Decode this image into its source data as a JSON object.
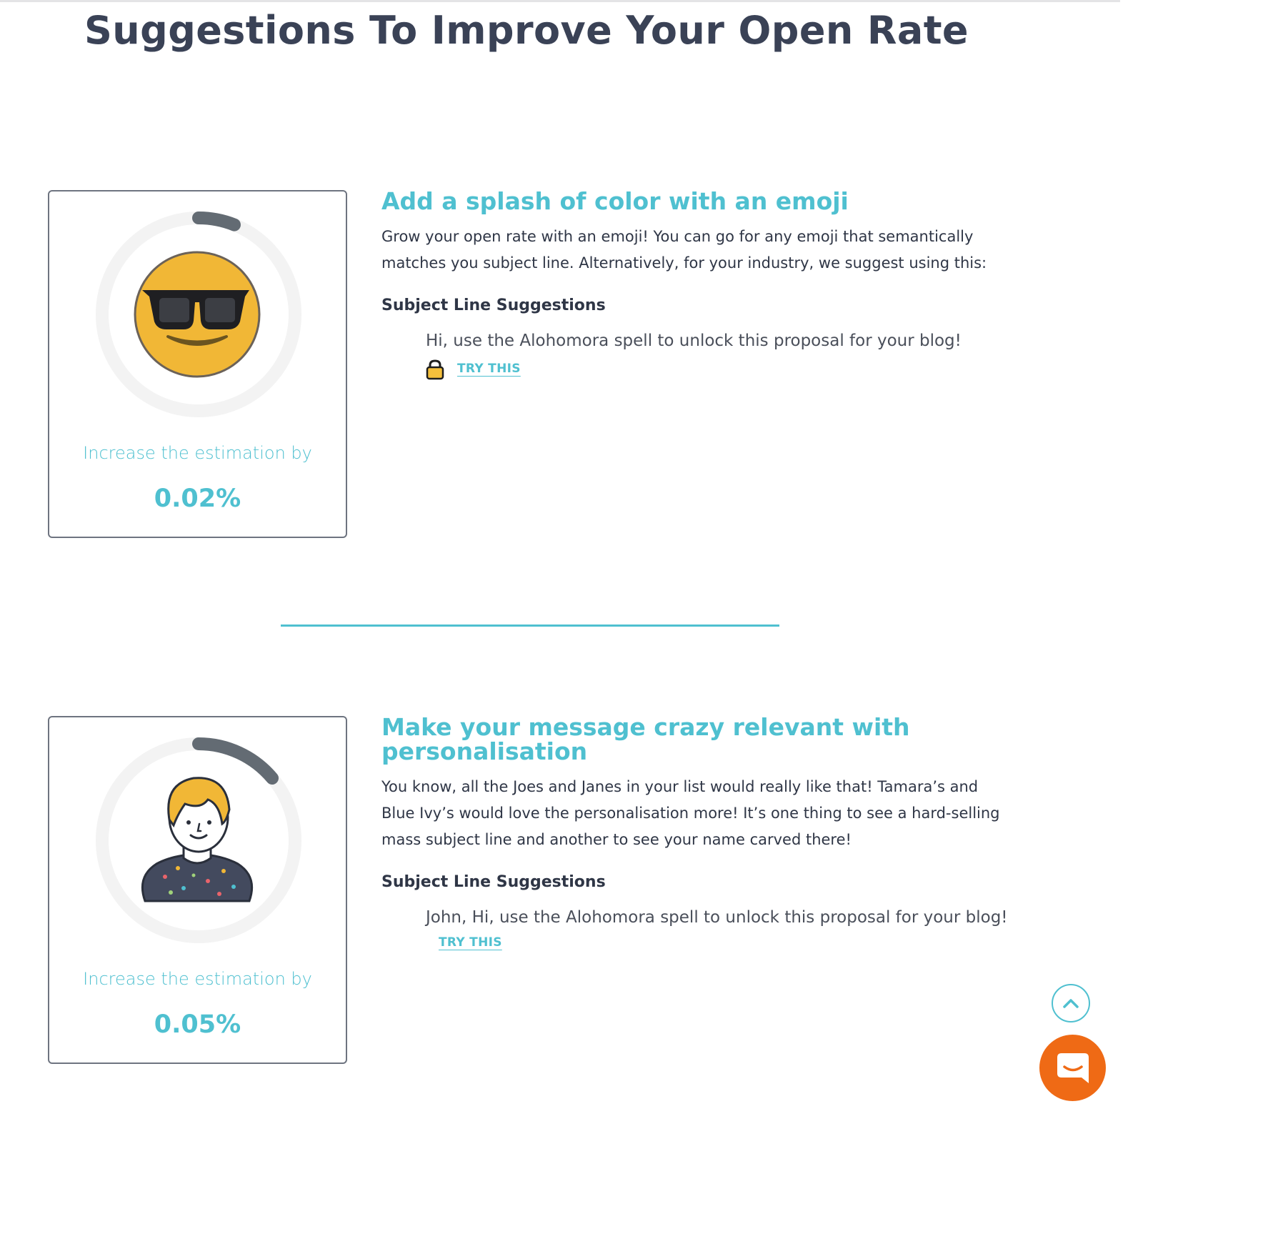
{
  "page": {
    "title": "Suggestions To Improve Your Open Rate"
  },
  "suggestions": [
    {
      "title": "Add a splash of color with an emoji",
      "description": "Grow your open rate with an emoji! You can go for any emoji that semantically matches you subject line. Alternatively, for your industry, we suggest using this:",
      "subject_heading": "Subject Line Suggestions",
      "subject_line": "Hi, use the Alohomora spell to unlock this proposal for your blog!",
      "try_label": "TRY THIS",
      "estimate_label": "Increase the estimation by",
      "estimate_value": "0.02%",
      "ring_progress": 0.02,
      "illustration": "sunglasses-emoji-icon"
    },
    {
      "title": "Make your message crazy relevant with personalisation",
      "description": "You know, all the Joes and Janes in your list would really like that! Tamara’s and Blue Ivy’s would love the personalisation more! It’s one thing to see a hard-selling mass subject line and another to see your name carved there!",
      "subject_heading": "Subject Line Suggestions",
      "subject_line": "John, Hi, use the Alohomora spell to unlock this proposal for your blog!",
      "try_label": "TRY THIS",
      "estimate_label": "Increase the estimation by",
      "estimate_value": "0.05%",
      "ring_progress": 0.05,
      "illustration": "person-avatar-icon"
    }
  ],
  "icons": {
    "lock": "lock-icon",
    "scroll_top": "chevron-up-icon",
    "chat": "chat-icon"
  },
  "colors": {
    "accent": "#4fc0d0",
    "heading": "#3a4256",
    "ring_track": "#f3f3f3",
    "ring_progress": "#636b73",
    "chat_button": "#ef6a15"
  }
}
